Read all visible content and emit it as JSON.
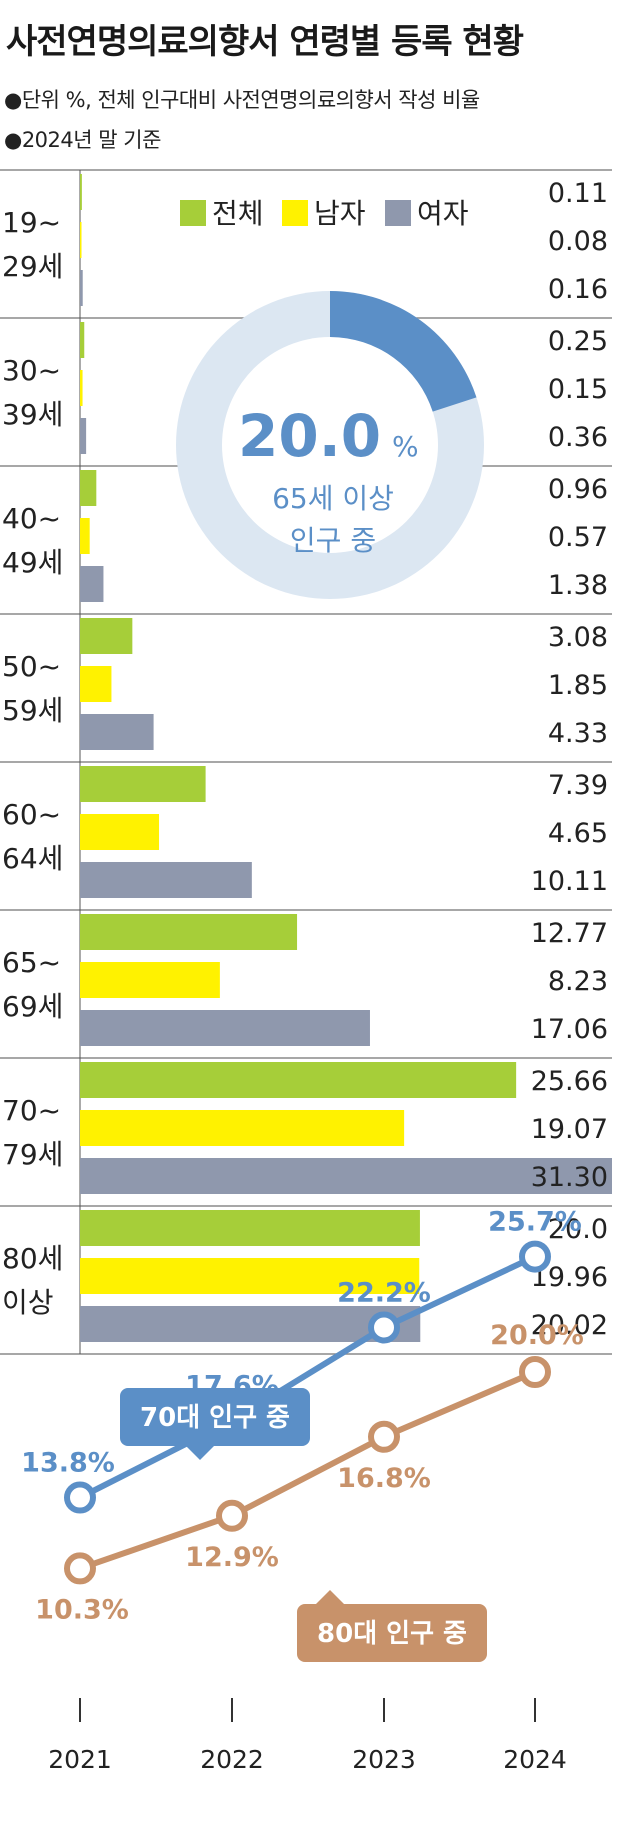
{
  "title": "사전연명의료의향서 연령별 등록 현황",
  "notes": {
    "unit": "●단위  %, 전체 인구대비 사전연명의료의향서 작성 비율",
    "basis": "●2024년 말 기준"
  },
  "colors": {
    "total": "#a6ce39",
    "male": "#fff200",
    "female": "#8f98ad",
    "donut_main": "#5b8fc7",
    "donut_track": "#dce7f2",
    "line_70s": "#5b8fc7",
    "line_80s": "#c8926a"
  },
  "chart_data": [
    {
      "type": "bar",
      "orientation": "horizontal",
      "legend": [
        "전체",
        "남자",
        "여자"
      ],
      "categories": [
        "19~ 29세",
        "30~ 39세",
        "40~ 49세",
        "50~ 59세",
        "60~ 64세",
        "65~ 69세",
        "70~ 79세",
        "80세 이상"
      ],
      "category_lines": [
        [
          "19~",
          "29세"
        ],
        [
          "30~",
          "39세"
        ],
        [
          "40~",
          "49세"
        ],
        [
          "50~",
          "59세"
        ],
        [
          "60~",
          "64세"
        ],
        [
          "65~",
          "69세"
        ],
        [
          "70~",
          "79세"
        ],
        [
          "80세",
          "이상"
        ]
      ],
      "series": [
        {
          "name": "전체",
          "values": [
            0.11,
            0.25,
            0.96,
            3.08,
            7.39,
            12.77,
            25.66,
            20.0
          ],
          "labels": [
            "0.11",
            "0.25",
            "0.96",
            "3.08",
            "7.39",
            "12.77",
            "25.66",
            "20.0"
          ]
        },
        {
          "name": "남자",
          "values": [
            0.08,
            0.15,
            0.57,
            1.85,
            4.65,
            8.23,
            19.07,
            19.96
          ],
          "labels": [
            "0.08",
            "0.15",
            "0.57",
            "1.85",
            "4.65",
            "8.23",
            "19.07",
            "19.96"
          ]
        },
        {
          "name": "여자",
          "values": [
            0.16,
            0.36,
            1.38,
            4.33,
            10.11,
            17.06,
            31.3,
            20.02
          ],
          "labels": [
            "0.16",
            "0.36",
            "1.38",
            "4.33",
            "10.11",
            "17.06",
            "31.30",
            "20.02"
          ]
        }
      ],
      "xlim": [
        0,
        31.3
      ]
    },
    {
      "type": "pie",
      "style": "donut",
      "value": 20.0,
      "value_label": "20.0",
      "unit": "%",
      "caption": [
        "65세 이상",
        "인구 중"
      ]
    },
    {
      "type": "line",
      "x": [
        "2021",
        "2022",
        "2023",
        "2024"
      ],
      "series": [
        {
          "name": "70대 인구 중",
          "values": [
            13.8,
            17.6,
            22.2,
            25.7
          ],
          "labels": [
            "13.8%",
            "17.6%",
            "22.2%",
            "25.7%"
          ]
        },
        {
          "name": "80대 인구 중",
          "values": [
            10.3,
            12.9,
            16.8,
            20.0
          ],
          "labels": [
            "10.3%",
            "12.9%",
            "16.8%",
            "20.0%"
          ]
        }
      ],
      "ylim": [
        8,
        28
      ]
    }
  ]
}
